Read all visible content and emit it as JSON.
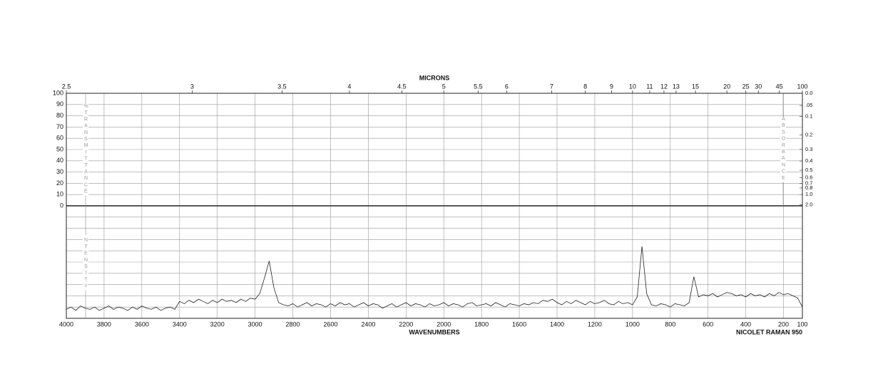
{
  "chart_data": {
    "type": "line",
    "top_axis_label": "MICRONS",
    "x_axis_label": "WAVENUMBERS",
    "instrument": "NICOLET RAMAN 950",
    "y_axis_label": "%TRANSMITTANCE",
    "y2_axis_label": "ABSORBANCE",
    "lower_axis_label": "INTENSITY",
    "xlim": [
      4000,
      100
    ],
    "xticks": [
      4000,
      3800,
      3600,
      3400,
      3200,
      3000,
      2800,
      2600,
      2400,
      2200,
      2000,
      1800,
      1600,
      1400,
      1200,
      1000,
      800,
      600,
      400,
      200,
      100
    ],
    "micron_ticks": [
      2.5,
      3,
      3.5,
      4,
      4.5,
      5,
      5.5,
      6,
      7,
      8,
      9,
      10,
      11,
      12,
      13,
      15,
      20,
      25,
      30,
      45,
      100
    ],
    "ylim": [
      0,
      100
    ],
    "yticks": [
      0,
      10,
      20,
      30,
      40,
      50,
      60,
      70,
      80,
      90,
      100
    ],
    "y2ticks": [
      {
        "value": 0,
        "label": "0.0"
      },
      {
        "value": 0.05,
        "label": ".05"
      },
      0.1,
      0.2,
      0.3,
      0.4,
      0.5,
      0.6,
      0.7,
      0.8,
      {
        "value": 1,
        "label": "1.0"
      },
      {
        "value": 2,
        "label": "2.0"
      }
    ],
    "intensity_lim": [
      0,
      100
    ],
    "grid": true,
    "color": "#222222",
    "x": [
      4000,
      3975,
      3950,
      3925,
      3900,
      3875,
      3850,
      3825,
      3800,
      3775,
      3750,
      3725,
      3700,
      3675,
      3650,
      3625,
      3600,
      3575,
      3550,
      3525,
      3500,
      3475,
      3450,
      3425,
      3400,
      3375,
      3350,
      3325,
      3300,
      3275,
      3250,
      3225,
      3200,
      3175,
      3150,
      3125,
      3100,
      3075,
      3050,
      3025,
      3000,
      2975,
      2950,
      2925,
      2900,
      2875,
      2850,
      2825,
      2800,
      2775,
      2750,
      2725,
      2700,
      2675,
      2650,
      2625,
      2600,
      2575,
      2550,
      2525,
      2500,
      2475,
      2450,
      2425,
      2400,
      2375,
      2350,
      2325,
      2300,
      2275,
      2250,
      2225,
      2200,
      2175,
      2150,
      2125,
      2100,
      2075,
      2050,
      2025,
      2000,
      1975,
      1950,
      1925,
      1900,
      1875,
      1850,
      1825,
      1800,
      1775,
      1750,
      1725,
      1700,
      1675,
      1650,
      1625,
      1600,
      1575,
      1550,
      1525,
      1500,
      1475,
      1450,
      1425,
      1400,
      1375,
      1350,
      1325,
      1300,
      1275,
      1250,
      1225,
      1200,
      1175,
      1150,
      1125,
      1100,
      1075,
      1050,
      1025,
      1000,
      975,
      950,
      925,
      900,
      875,
      850,
      825,
      800,
      775,
      750,
      725,
      700,
      675,
      650,
      625,
      600,
      575,
      550,
      525,
      500,
      475,
      450,
      425,
      400,
      375,
      350,
      325,
      300,
      275,
      250,
      225,
      200,
      175,
      150,
      125,
      100
    ],
    "values": [
      8,
      10,
      7,
      11,
      9,
      8,
      10,
      7,
      9,
      11,
      8,
      10,
      9,
      7,
      10,
      8,
      11,
      9,
      8,
      10,
      7,
      9,
      10,
      8,
      15,
      13,
      16,
      14,
      17,
      15,
      13,
      16,
      14,
      17,
      15,
      16,
      14,
      17,
      15,
      18,
      17,
      22,
      36,
      51,
      27,
      14,
      12,
      11,
      13,
      10,
      12,
      14,
      11,
      13,
      12,
      10,
      13,
      11,
      14,
      12,
      13,
      10,
      12,
      14,
      11,
      13,
      12,
      9,
      11,
      13,
      10,
      12,
      14,
      11,
      13,
      12,
      10,
      13,
      11,
      12,
      14,
      11,
      13,
      12,
      10,
      13,
      14,
      11,
      12,
      13,
      11,
      14,
      12,
      10,
      13,
      12,
      11,
      13,
      12,
      14,
      13,
      16,
      15,
      17,
      14,
      12,
      15,
      13,
      16,
      14,
      12,
      15,
      13,
      14,
      16,
      13,
      12,
      15,
      13,
      14,
      12,
      19,
      64,
      22,
      12,
      11,
      13,
      12,
      10,
      13,
      12,
      11,
      14,
      37,
      19,
      21,
      20,
      22,
      19,
      21,
      23,
      22,
      20,
      21,
      19,
      22,
      20,
      21,
      19,
      22,
      20,
      23,
      21,
      22,
      20,
      18,
      10
    ]
  }
}
